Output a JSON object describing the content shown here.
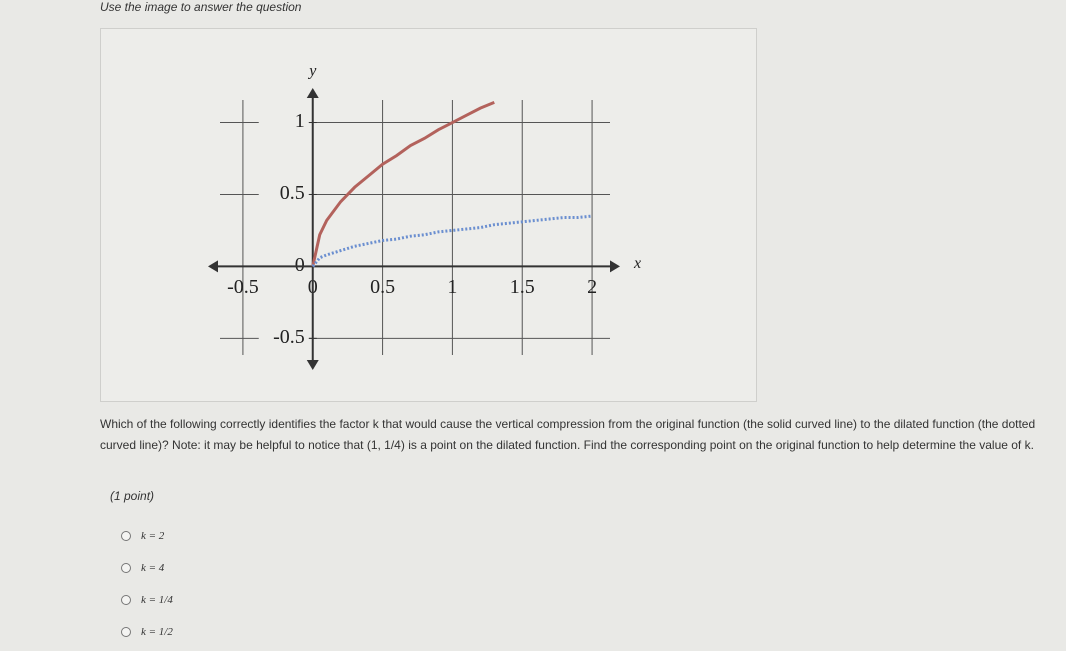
{
  "instruction": "Use the image to answer the question",
  "chart_data": {
    "type": "line",
    "x_label": "x",
    "y_label": "y",
    "x": [
      0,
      0.05,
      0.1,
      0.2,
      0.3,
      0.4,
      0.5,
      0.6,
      0.7,
      0.8,
      0.9,
      1,
      1.1,
      1.2,
      1.3,
      1.4,
      1.5,
      1.6,
      1.7,
      1.8,
      1.9,
      2
    ],
    "series": [
      {
        "color": "#b3625c",
        "style": "solid",
        "values": [
          0,
          0.22,
          0.32,
          0.45,
          0.55,
          0.63,
          0.71,
          0.77,
          0.84,
          0.89,
          0.95,
          1,
          1.05,
          1.1,
          1.14,
          null,
          null,
          null,
          null,
          null,
          null,
          null
        ]
      },
      {
        "color": "#6b8fd0",
        "style": "dotted",
        "values": [
          0,
          0.06,
          0.08,
          0.11,
          0.14,
          0.16,
          0.18,
          0.19,
          0.21,
          0.22,
          0.24,
          0.25,
          0.26,
          0.27,
          0.29,
          0.3,
          0.31,
          0.32,
          0.33,
          0.34,
          0.34,
          0.35
        ]
      }
    ],
    "xlim": [
      -0.75,
      2.2
    ],
    "ylim": [
      -0.72,
      1.24
    ],
    "xticks": [
      -0.5,
      0,
      0.5,
      1,
      1.5,
      2
    ],
    "yticks": [
      -0.5,
      0,
      0.5,
      1
    ],
    "grid": true
  },
  "question": {
    "before": "Which of the following correctly identifies the factor k that would cause the vertical compression from the original function (the solid curved line) to the dilated function (the dotted curved line)? Note: it may be helpful to notice that",
    "point": "(1, 1/4)",
    "after": "is a point on the dilated function. Find the corresponding point on the original function to help determine the value of k."
  },
  "points": "(1 point)",
  "options": [
    "k = 2",
    "k = 4",
    "k = 1/4",
    "k = 1/2"
  ]
}
